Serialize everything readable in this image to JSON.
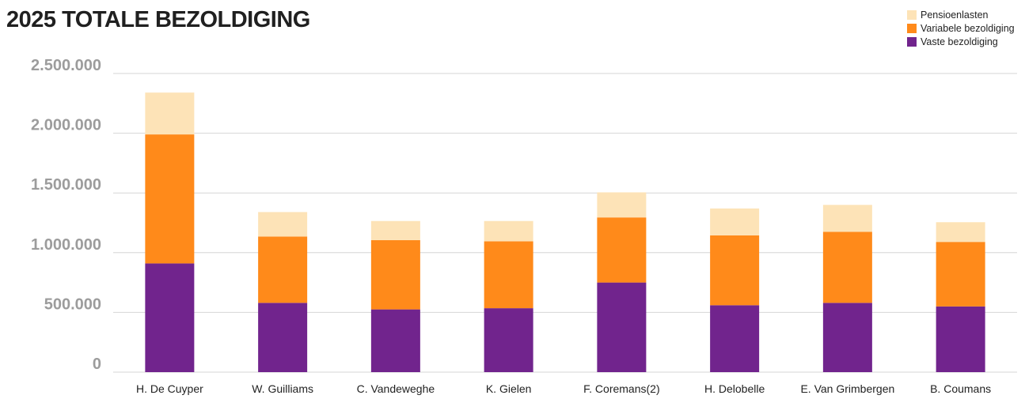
{
  "chart_data": {
    "type": "bar",
    "stacked": true,
    "title": "2025 TOTALE BEZOLDIGING",
    "xlabel": "",
    "ylabel": "",
    "ylim": [
      0,
      2500000
    ],
    "yticks": [
      0,
      500000,
      1000000,
      1500000,
      2000000,
      2500000
    ],
    "ytick_labels": [
      "0",
      "500.000",
      "1.000.000",
      "1.500.000",
      "2.000.000",
      "2.500.000"
    ],
    "grid": true,
    "legend_position": "top-right",
    "categories": [
      "H. De Cuyper",
      "W. Guilliams",
      "C. Vandeweghe",
      "K. Gielen",
      "F. Coremans(2)",
      "H. Delobelle",
      "E. Van Grimbergen",
      "B. Coumans"
    ],
    "series": [
      {
        "name": "Vaste bezoldiging",
        "color": "#71248d",
        "values": [
          910000,
          580000,
          525000,
          535000,
          750000,
          560000,
          580000,
          550000
        ]
      },
      {
        "name": "Variabele bezoldiging",
        "color": "#ff8a1a",
        "values": [
          1080000,
          555000,
          580000,
          560000,
          545000,
          585000,
          595000,
          540000
        ]
      },
      {
        "name": "Pensioenlasten",
        "color": "#fde3b7",
        "values": [
          350000,
          205000,
          160000,
          170000,
          210000,
          225000,
          225000,
          165000
        ]
      }
    ]
  }
}
